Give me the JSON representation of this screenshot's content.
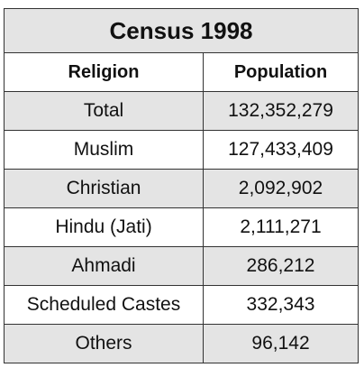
{
  "table": {
    "title": "Census 1998",
    "headers": {
      "religion": "Religion",
      "population": "Population"
    },
    "rows": [
      {
        "religion": "Total",
        "population": "132,352,279"
      },
      {
        "religion": "Muslim",
        "population": "127,433,409"
      },
      {
        "religion": "Christian",
        "population": "2,092,902"
      },
      {
        "religion": "Hindu (Jati)",
        "population": "2,111,271"
      },
      {
        "religion": "Ahmadi",
        "population": "286,212"
      },
      {
        "religion": "Scheduled Castes",
        "population": "332,343"
      },
      {
        "religion": "Others",
        "population": "96,142"
      }
    ]
  },
  "colors": {
    "shaded_row": "#e4e4e4",
    "plain_row": "#ffffff",
    "border": "#333333"
  }
}
